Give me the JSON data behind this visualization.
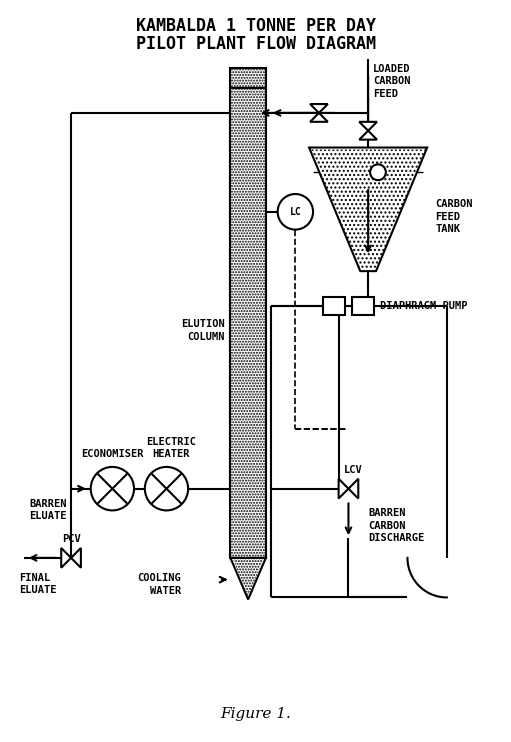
{
  "title_line1": "KAMBALDA 1 TONNE PER DAY",
  "title_line2": "PILOT PLANT FLOW DIAGRAM",
  "figure_caption": "Figure 1.",
  "labels": {
    "loaded_carbon_feed": "LOADED\nCARBON\nFEED",
    "carbon_feed_tank": "CARBON\nFEED\nTANK",
    "diaphragm_pump": "DIAPHRAGM PUMP",
    "elution_column": "ELUTION\nCOLUMN",
    "lc": "LC",
    "economiser": "ECONOMISER",
    "electric_heater": "ELECTRIC\nHEATER",
    "barren_eluate": "BARREN\nELUATE",
    "pcv": "PCV",
    "final_eluate": "FINAL\nELUATE",
    "cooling_water": "COOLING\nWATER",
    "lcv": "LCV",
    "barren_carbon_discharge": "BARREN\nCARBON\nDISCHARGE"
  },
  "bg_color": "#ffffff",
  "line_color": "#000000",
  "font_family": "DejaVu Sans"
}
